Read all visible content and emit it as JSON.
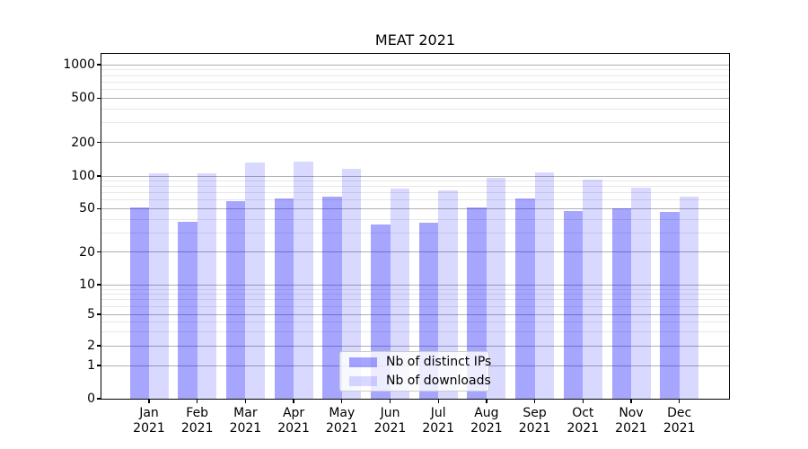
{
  "chart_data": {
    "type": "bar",
    "title": "MEAT 2021",
    "categories": [
      "Jan 2021",
      "Feb 2021",
      "Mar 2021",
      "Apr 2021",
      "May 2021",
      "Jun 2021",
      "Jul 2021",
      "Aug 2021",
      "Sep 2021",
      "Oct 2021",
      "Nov 2021",
      "Dec 2021"
    ],
    "series": [
      {
        "name": "Nb of distinct IPs",
        "color": "rgba(0,0,255,0.35)",
        "values": [
          51,
          38,
          59,
          62,
          65,
          36,
          37,
          51,
          62,
          48,
          50,
          47
        ]
      },
      {
        "name": "Nb of downloads",
        "color": "rgba(0,0,255,0.15)",
        "values": [
          106,
          105,
          133,
          134,
          117,
          76,
          74,
          96,
          107,
          92,
          78,
          64
        ]
      }
    ],
    "xlabel": "",
    "ylabel": "",
    "yscale": "symlog",
    "ylim": [
      0,
      1250
    ],
    "y_major_ticks": [
      1000,
      500,
      200,
      100,
      50,
      20,
      10,
      5,
      2,
      1,
      0
    ],
    "y_minor_ticks": [
      900,
      800,
      700,
      600,
      400,
      300,
      90,
      80,
      70,
      60,
      40,
      30,
      9,
      8,
      7,
      6,
      4,
      3
    ],
    "grid": true,
    "legend_position": "lower center"
  },
  "legend": {
    "items": [
      {
        "label": "Nb of distinct IPs",
        "color": "rgba(0,0,255,0.35)"
      },
      {
        "label": "Nb of downloads",
        "color": "rgba(0,0,255,0.15)"
      }
    ]
  },
  "colors": {
    "grid_major": "#b0b0b0",
    "grid_minor": "#e7e7e7",
    "spine": "#000000",
    "background": "#ffffff"
  }
}
